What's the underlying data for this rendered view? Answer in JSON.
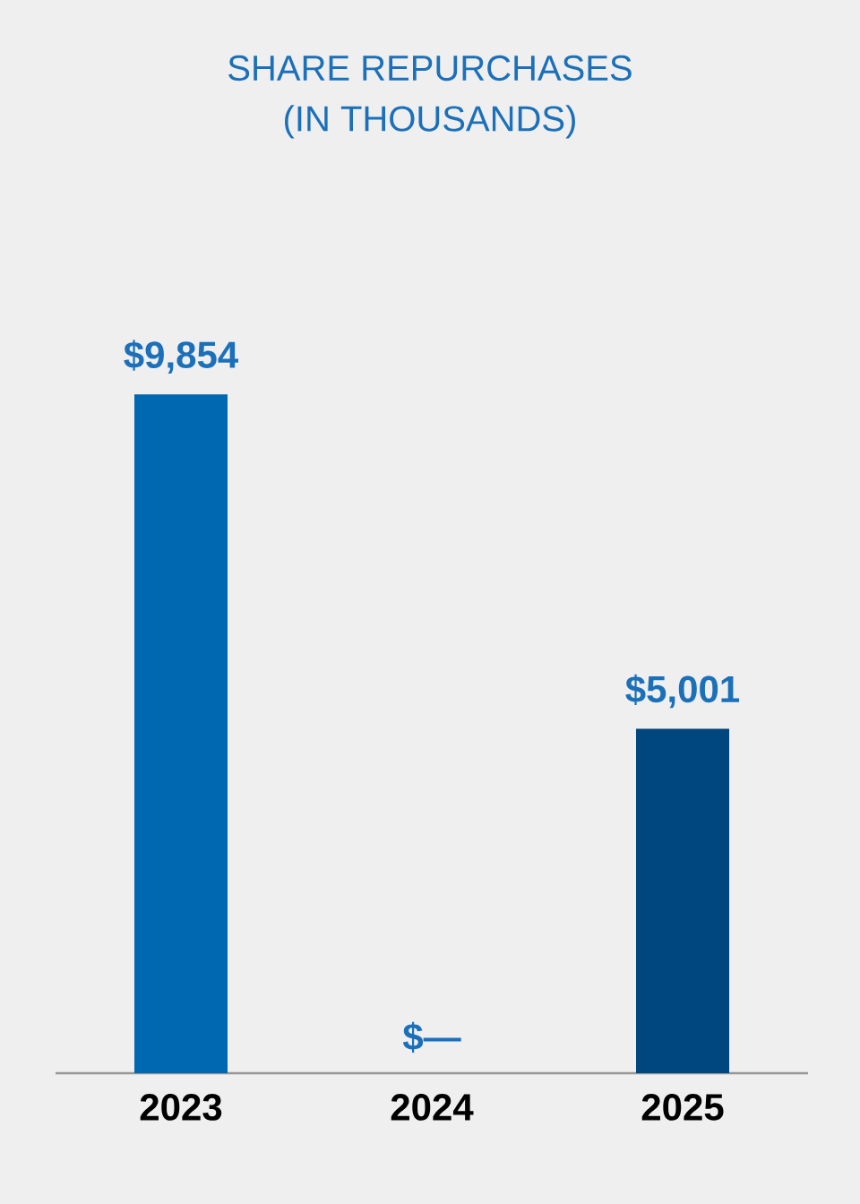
{
  "chart_data": {
    "type": "bar",
    "title": "SHARE REPURCHASES",
    "subtitle": "(IN THOUSANDS)",
    "categories": [
      "2023",
      "2024",
      "2025"
    ],
    "values": [
      9854,
      0,
      5001
    ],
    "colors": [
      "#0067b1",
      "#0067b1",
      "#00467f"
    ],
    "value_labels": [
      "$9,854",
      "$—",
      "$5,001"
    ]
  }
}
